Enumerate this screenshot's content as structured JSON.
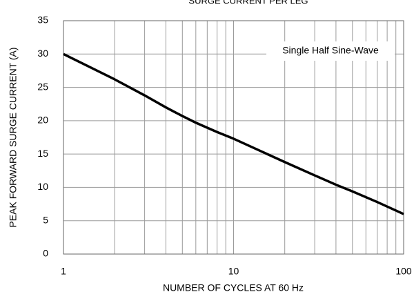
{
  "chart_data": {
    "type": "line",
    "title": "SURGE CURRENT PER LEG",
    "x_label": "NUMBER OF CYCLES AT 60 Hz",
    "y_label": "PEAK FORWARD SURGE CURRENT (A)",
    "annotation": "Single Half Sine-Wave",
    "x_scale": "log",
    "x": [
      1,
      2,
      3,
      4,
      5,
      6,
      8,
      10,
      20,
      30,
      40,
      50,
      70,
      100
    ],
    "series": [
      {
        "name": "Peak forward surge current",
        "color": "#000000",
        "values": [
          30,
          26.2,
          23.8,
          22,
          20.7,
          19.7,
          18.3,
          17.3,
          13.8,
          11.8,
          10.4,
          9.4,
          7.8,
          6
        ]
      }
    ],
    "xlim": [
      1,
      100
    ],
    "xticks": [
      1,
      10,
      100
    ],
    "xminorticks": [
      2,
      3,
      4,
      5,
      6,
      7,
      8,
      9,
      20,
      30,
      40,
      50,
      60,
      70,
      80,
      90
    ],
    "ylim": [
      0,
      35
    ],
    "yticks": [
      0,
      5,
      10,
      15,
      20,
      25,
      30,
      35
    ],
    "grid": true
  }
}
